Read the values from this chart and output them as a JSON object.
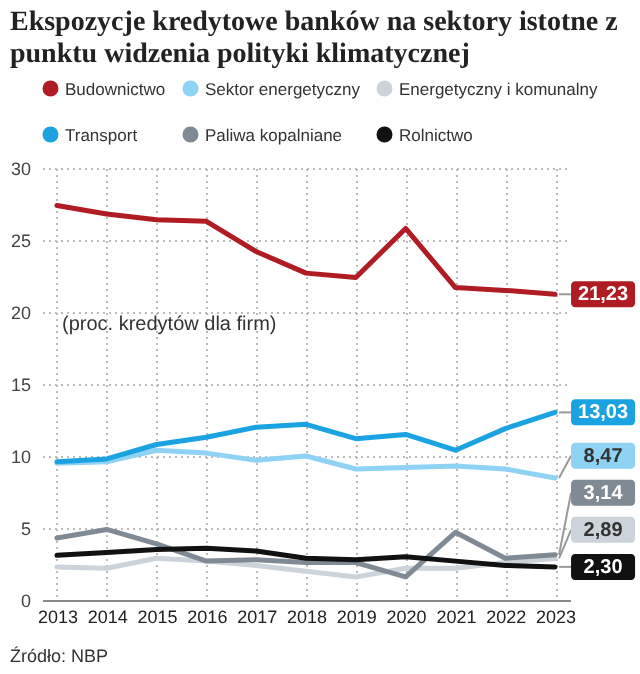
{
  "chart_data": {
    "type": "line",
    "title": "Ekspozycje kredytowe banków na sektory istotne z punktu widzenia polityki klimatycznej",
    "x": [
      2013,
      2014,
      2015,
      2016,
      2017,
      2018,
      2019,
      2020,
      2021,
      2022,
      2023
    ],
    "series": [
      {
        "name": "Budownictwo",
        "color": "#b01c24",
        "values": [
          27.4,
          26.8,
          26.4,
          26.3,
          24.2,
          22.7,
          22.4,
          25.8,
          21.7,
          21.5,
          21.23
        ],
        "value_labels": [
          null,
          null,
          null,
          null,
          null,
          null,
          null,
          null,
          null,
          null,
          "21,23"
        ]
      },
      {
        "name": "Sektor energetyczny",
        "color": "#8fd3f4",
        "values": [
          9.5,
          9.6,
          10.4,
          10.2,
          9.7,
          10.0,
          9.1,
          9.2,
          9.3,
          9.1,
          8.47
        ],
        "value_labels": [
          null,
          null,
          null,
          null,
          null,
          null,
          null,
          null,
          null,
          null,
          "8,47"
        ]
      },
      {
        "name": "Energetyczny i komunalny",
        "color": "#cdd3da",
        "values": [
          2.3,
          2.2,
          2.9,
          2.7,
          2.4,
          2.0,
          1.6,
          2.2,
          2.2,
          2.6,
          2.89
        ],
        "value_labels": [
          null,
          null,
          null,
          null,
          null,
          null,
          null,
          null,
          null,
          null,
          "2,89"
        ]
      },
      {
        "name": "Transport",
        "color": "#1aa3e0",
        "values": [
          9.6,
          9.8,
          10.8,
          11.3,
          12.0,
          12.2,
          11.2,
          11.5,
          10.4,
          11.9,
          13.03
        ],
        "value_labels": [
          null,
          null,
          null,
          null,
          null,
          null,
          null,
          null,
          null,
          null,
          "13,03"
        ]
      },
      {
        "name": "Paliwa kopalniane",
        "color": "#7f8a94",
        "values": [
          4.3,
          4.9,
          3.9,
          2.7,
          2.8,
          2.6,
          2.6,
          1.6,
          4.7,
          2.9,
          3.14
        ],
        "value_labels": [
          null,
          null,
          null,
          null,
          null,
          null,
          null,
          null,
          null,
          null,
          "3,14"
        ]
      },
      {
        "name": "Rolnictwo",
        "color": "#111111",
        "values": [
          3.1,
          3.3,
          3.5,
          3.6,
          3.4,
          2.9,
          2.8,
          3.0,
          2.7,
          2.4,
          2.3
        ],
        "value_labels": [
          null,
          null,
          null,
          null,
          null,
          null,
          null,
          null,
          null,
          null,
          "2,30"
        ]
      }
    ],
    "xlim": [
      2012.7,
      2023.3
    ],
    "xticks": [
      2013,
      2014,
      2015,
      2016,
      2017,
      2018,
      2019,
      2020,
      2021,
      2022,
      2023
    ],
    "ylim": [
      0,
      30
    ],
    "yticks": [
      0,
      5,
      10,
      15,
      20,
      25,
      30
    ],
    "grid": true,
    "legend": "top",
    "marker": "none",
    "line_style": "solid",
    "annotations": [
      "(proc. kredytów dla firm)",
      "Źródło: NBP"
    ]
  }
}
